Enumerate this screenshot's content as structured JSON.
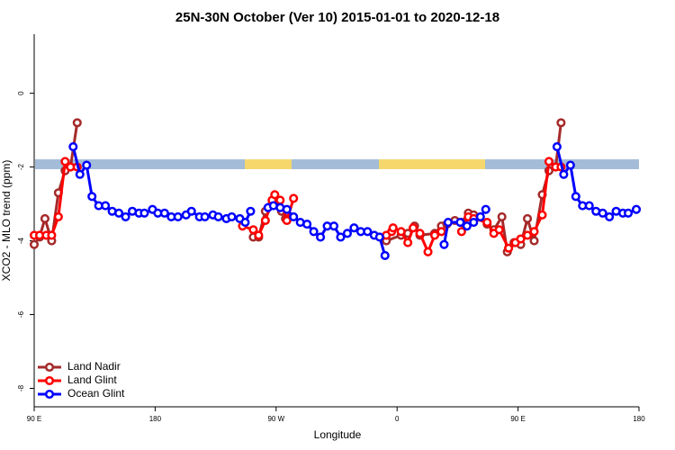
{
  "chart_data": {
    "type": "line",
    "title": "25N-30N October (Ver 10)   2015-01-01 to 2020-12-18",
    "x_label": "Longitude",
    "y_label": "XCO2 - MLO trend (ppm)",
    "xlim": [
      90,
      540
    ],
    "xticks": [
      {
        "value": 90,
        "label": "90 E"
      },
      {
        "value": 180,
        "label": "180"
      },
      {
        "value": 270,
        "label": "90 W"
      },
      {
        "value": 360,
        "label": "0"
      },
      {
        "value": 450,
        "label": "90 E"
      },
      {
        "value": 540,
        "label": "180"
      }
    ],
    "ylim": [
      -8.5,
      1.6
    ],
    "yticks": [
      0,
      -2,
      -4,
      -6,
      -8
    ],
    "legend": "bottom-left",
    "series": [
      {
        "name": "Land Nadir",
        "color": "#a52a2a",
        "x": [
          90,
          94,
          98,
          103,
          108,
          113,
          117,
          122,
          null,
          253,
          257,
          262,
          267,
          269,
          274,
          277,
          null,
          352,
          363,
          368,
          373,
          377,
          388,
          393,
          397,
          403,
          408,
          413,
          417,
          427,
          432,
          438,
          442,
          447,
          452,
          457,
          462,
          468,
          473,
          478,
          482
        ],
        "values": [
          -4.1,
          -3.9,
          -3.4,
          -4.0,
          -2.7,
          -2.1,
          -2.0,
          -0.8,
          null,
          -3.9,
          -3.9,
          -3.2,
          -3.0,
          -2.8,
          -3.2,
          -3.4,
          null,
          -4.0,
          -3.85,
          -3.8,
          -3.6,
          -3.85,
          -3.8,
          -3.6,
          -3.55,
          -3.45,
          -3.5,
          -3.25,
          -3.3,
          -3.55,
          -3.7,
          -3.35,
          -4.3,
          -4.05,
          -4.1,
          -3.4,
          -4.0,
          -2.75,
          -2.1,
          -2.0,
          -0.8
        ]
      },
      {
        "name": "Land Glint",
        "color": "#ff0000",
        "x": [
          90,
          94,
          99,
          103,
          108,
          113,
          117,
          122,
          null,
          245,
          253,
          257,
          262,
          267,
          269,
          273,
          278,
          283,
          null,
          352,
          356,
          357,
          363,
          368,
          372,
          377,
          383,
          388,
          393,
          null,
          408,
          413,
          417,
          427,
          432,
          436,
          443,
          448,
          452,
          457,
          462,
          468,
          473,
          478,
          482
        ],
        "values": [
          -3.85,
          -3.85,
          -3.85,
          -3.85,
          -3.35,
          -1.85,
          -2.0,
          -2.0,
          null,
          -3.6,
          -3.7,
          -3.85,
          -3.45,
          -2.9,
          -2.75,
          -2.9,
          -3.45,
          -2.85,
          null,
          -3.85,
          -3.75,
          -3.65,
          -3.75,
          -4.05,
          -3.65,
          -3.8,
          -4.3,
          -3.85,
          -3.75,
          null,
          -3.75,
          -3.35,
          -3.4,
          -3.5,
          -3.8,
          -3.7,
          -4.2,
          -4.05,
          -3.95,
          -3.85,
          -3.75,
          -3.3,
          -1.85,
          -2.0,
          -2.0
        ]
      },
      {
        "name": "Ocean Glint",
        "color": "#0000ff",
        "x": [
          119,
          124,
          129,
          133,
          138,
          143,
          148,
          153,
          158,
          163,
          168,
          172,
          178,
          182,
          187,
          192,
          197,
          203,
          207,
          213,
          217,
          223,
          227,
          233,
          237,
          243,
          247,
          251,
          null,
          264,
          268,
          273,
          278,
          283,
          288,
          293,
          298,
          303,
          308,
          313,
          318,
          323,
          328,
          333,
          338,
          343,
          347,
          351,
          null,
          395,
          398,
          407,
          412,
          417,
          422,
          426,
          null,
          479,
          484,
          489,
          493,
          498,
          503,
          508,
          513,
          518,
          523,
          528,
          532,
          538
        ],
        "values": [
          -1.45,
          -2.2,
          -1.95,
          -2.8,
          -3.05,
          -3.05,
          -3.2,
          -3.25,
          -3.35,
          -3.2,
          -3.25,
          -3.25,
          -3.15,
          -3.25,
          -3.25,
          -3.35,
          -3.35,
          -3.3,
          -3.2,
          -3.35,
          -3.35,
          -3.3,
          -3.35,
          -3.4,
          -3.35,
          -3.4,
          -3.5,
          -3.2,
          null,
          -3.1,
          -3.05,
          -3.1,
          -3.15,
          -3.35,
          -3.5,
          -3.55,
          -3.75,
          -3.9,
          -3.6,
          -3.6,
          -3.9,
          -3.8,
          -3.65,
          -3.75,
          -3.75,
          -3.85,
          -3.9,
          -4.4,
          null,
          -4.1,
          -3.5,
          -3.5,
          -3.6,
          -3.5,
          -3.35,
          -3.15,
          null,
          -1.45,
          -2.2,
          -1.95,
          -2.8,
          -3.05,
          -3.05,
          -3.2,
          -3.25,
          -3.35,
          -3.2,
          -3.25,
          -3.25,
          -3.15
        ]
      }
    ]
  }
}
